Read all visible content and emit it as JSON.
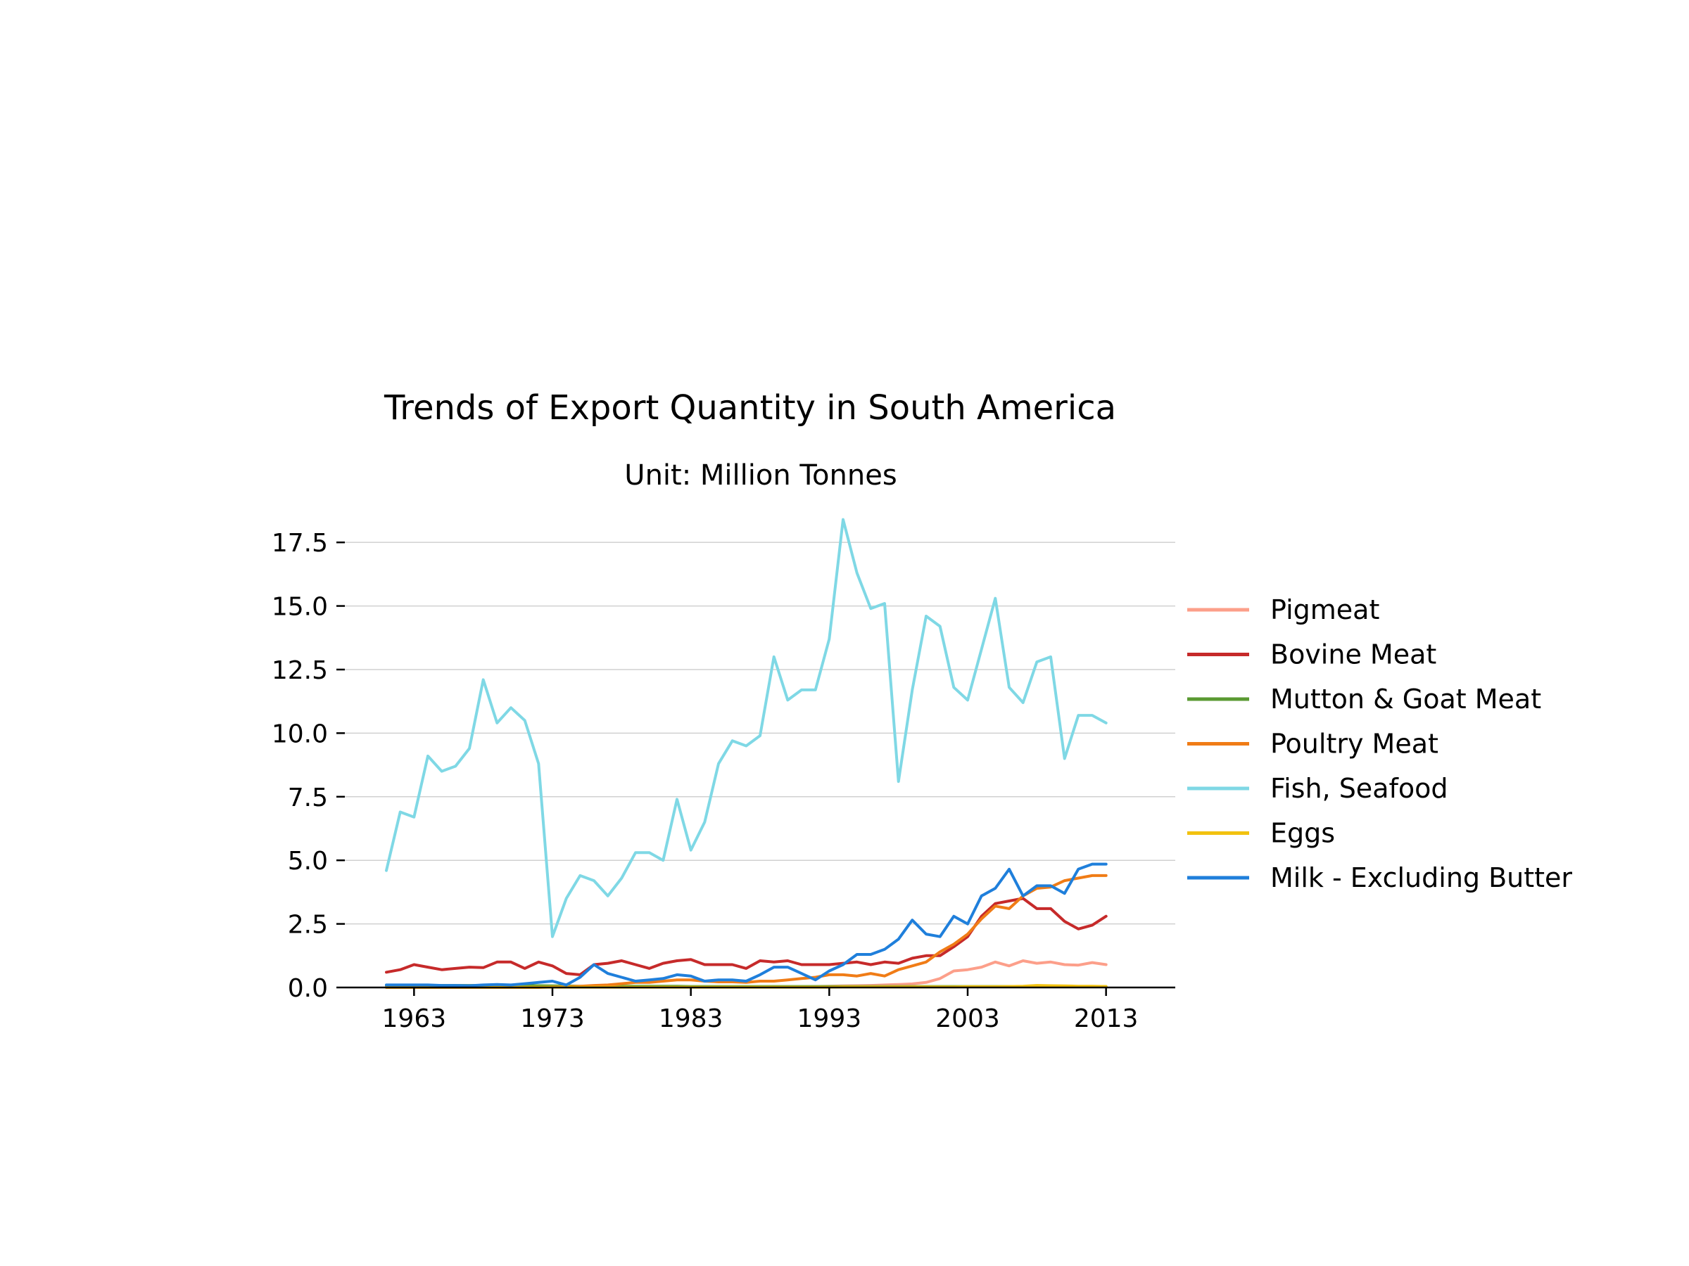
{
  "chart_data": {
    "type": "line",
    "title": "Trends of Export Quantity in South America",
    "subtitle": "Unit: Million Tonnes",
    "xlabel": "",
    "ylabel": "",
    "xlim": [
      1958,
      2018
    ],
    "ylim": [
      0,
      18.5
    ],
    "x_ticks": [
      1963,
      1973,
      1983,
      1993,
      2003,
      2013
    ],
    "y_ticks": [
      0.0,
      2.5,
      5.0,
      7.5,
      10.0,
      12.5,
      15.0,
      17.5
    ],
    "y_tick_labels": [
      "0.0",
      "2.5",
      "5.0",
      "7.5",
      "10.0",
      "12.5",
      "15.0",
      "17.5"
    ],
    "grid": "horizontal",
    "legend_position": "right",
    "x": [
      1961,
      1962,
      1963,
      1964,
      1965,
      1966,
      1967,
      1968,
      1969,
      1970,
      1971,
      1972,
      1973,
      1974,
      1975,
      1976,
      1977,
      1978,
      1979,
      1980,
      1981,
      1982,
      1983,
      1984,
      1985,
      1986,
      1987,
      1988,
      1989,
      1990,
      1991,
      1992,
      1993,
      1994,
      1995,
      1996,
      1997,
      1998,
      1999,
      2000,
      2001,
      2002,
      2003,
      2004,
      2005,
      2006,
      2007,
      2008,
      2009,
      2010,
      2011,
      2012,
      2013
    ],
    "series": [
      {
        "name": "Pigmeat",
        "color": "#fc9f8a",
        "values": [
          0.02,
          0.02,
          0.02,
          0.02,
          0.02,
          0.02,
          0.02,
          0.02,
          0.02,
          0.02,
          0.02,
          0.02,
          0.02,
          0.02,
          0.02,
          0.02,
          0.02,
          0.02,
          0.02,
          0.02,
          0.02,
          0.02,
          0.02,
          0.02,
          0.02,
          0.02,
          0.02,
          0.02,
          0.03,
          0.03,
          0.03,
          0.04,
          0.05,
          0.06,
          0.07,
          0.08,
          0.1,
          0.12,
          0.14,
          0.2,
          0.35,
          0.65,
          0.7,
          0.8,
          1.0,
          0.85,
          1.05,
          0.95,
          1.0,
          0.9,
          0.88,
          0.98,
          0.9
        ]
      },
      {
        "name": "Bovine Meat",
        "color": "#c62a2a",
        "values": [
          0.6,
          0.7,
          0.9,
          0.8,
          0.7,
          0.75,
          0.8,
          0.78,
          1.0,
          1.0,
          0.75,
          1.0,
          0.85,
          0.55,
          0.5,
          0.9,
          0.95,
          1.05,
          0.9,
          0.75,
          0.95,
          1.05,
          1.1,
          0.9,
          0.9,
          0.9,
          0.75,
          1.05,
          1.0,
          1.05,
          0.9,
          0.9,
          0.9,
          0.95,
          1.0,
          0.9,
          1.0,
          0.95,
          1.15,
          1.25,
          1.25,
          1.6,
          2.0,
          2.8,
          3.3,
          3.4,
          3.5,
          3.1,
          3.1,
          2.6,
          2.3,
          2.45,
          2.8
        ]
      },
      {
        "name": "Mutton & Goat Meat",
        "color": "#5a9a32",
        "values": [
          0.08,
          0.08,
          0.08,
          0.08,
          0.08,
          0.08,
          0.08,
          0.08,
          0.08,
          0.08,
          0.07,
          0.07,
          0.06,
          0.06,
          0.05,
          0.05,
          0.05,
          0.05,
          0.05,
          0.05,
          0.05,
          0.05,
          0.04,
          0.04,
          0.04,
          0.04,
          0.04,
          0.04,
          0.04,
          0.04,
          0.04,
          0.04,
          0.04,
          0.04,
          0.04,
          0.04,
          0.04,
          0.04,
          0.04,
          0.04,
          0.04,
          0.04,
          0.04,
          0.04,
          0.04,
          0.04,
          0.04,
          0.04,
          0.04,
          0.04,
          0.04,
          0.04,
          0.04
        ]
      },
      {
        "name": "Poultry Meat",
        "color": "#f07c16",
        "values": [
          0.0,
          0.0,
          0.0,
          0.0,
          0.0,
          0.0,
          0.0,
          0.0,
          0.0,
          0.0,
          0.0,
          0.0,
          0.02,
          0.03,
          0.05,
          0.08,
          0.1,
          0.15,
          0.2,
          0.2,
          0.25,
          0.3,
          0.3,
          0.25,
          0.22,
          0.22,
          0.2,
          0.25,
          0.25,
          0.3,
          0.35,
          0.4,
          0.5,
          0.5,
          0.45,
          0.55,
          0.45,
          0.7,
          0.85,
          1.0,
          1.4,
          1.7,
          2.1,
          2.7,
          3.2,
          3.1,
          3.6,
          3.9,
          3.95,
          4.2,
          4.3,
          4.4,
          4.4
        ]
      },
      {
        "name": "Fish, Seafood",
        "color": "#7fd8e5",
        "values": [
          4.6,
          6.9,
          6.7,
          9.1,
          8.5,
          8.7,
          9.4,
          12.1,
          10.4,
          11.0,
          10.5,
          8.8,
          2.0,
          3.5,
          4.4,
          4.2,
          3.6,
          4.3,
          5.3,
          5.3,
          5.0,
          7.4,
          5.4,
          6.5,
          8.8,
          9.7,
          9.5,
          9.9,
          13.0,
          11.3,
          11.7,
          11.7,
          13.7,
          18.4,
          16.3,
          14.9,
          15.1,
          8.1,
          11.7,
          14.6,
          14.2,
          11.8,
          11.3,
          13.3,
          15.3,
          11.8,
          11.2,
          12.8,
          13.0,
          9.0,
          10.7,
          10.7,
          10.4
        ]
      },
      {
        "name": "Eggs",
        "color": "#f2c20f",
        "values": [
          0.01,
          0.01,
          0.01,
          0.01,
          0.01,
          0.01,
          0.01,
          0.01,
          0.01,
          0.01,
          0.01,
          0.01,
          0.01,
          0.01,
          0.01,
          0.01,
          0.01,
          0.01,
          0.01,
          0.01,
          0.01,
          0.01,
          0.01,
          0.01,
          0.01,
          0.01,
          0.01,
          0.01,
          0.01,
          0.01,
          0.01,
          0.01,
          0.01,
          0.02,
          0.02,
          0.02,
          0.02,
          0.02,
          0.02,
          0.02,
          0.02,
          0.02,
          0.03,
          0.03,
          0.03,
          0.04,
          0.05,
          0.08,
          0.07,
          0.06,
          0.05,
          0.05,
          0.04
        ]
      },
      {
        "name": "Milk - Excluding Butter",
        "color": "#1f7fdb",
        "values": [
          0.1,
          0.1,
          0.1,
          0.1,
          0.08,
          0.08,
          0.07,
          0.1,
          0.12,
          0.1,
          0.15,
          0.2,
          0.25,
          0.1,
          0.4,
          0.9,
          0.55,
          0.4,
          0.25,
          0.3,
          0.35,
          0.5,
          0.45,
          0.25,
          0.3,
          0.3,
          0.25,
          0.5,
          0.8,
          0.8,
          0.55,
          0.3,
          0.65,
          0.9,
          1.3,
          1.3,
          1.5,
          1.9,
          2.65,
          2.1,
          2.0,
          2.8,
          2.5,
          3.6,
          3.9,
          4.65,
          3.6,
          4.0,
          4.0,
          3.7,
          4.65,
          4.85,
          4.85
        ]
      }
    ]
  }
}
